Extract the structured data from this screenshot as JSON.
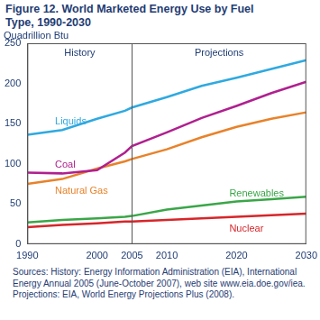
{
  "chart_data": {
    "type": "line",
    "title": "Figure 12. World Marketed Energy Use by Fuel Type, 1990-2030",
    "y_label": "Quadrillion Btu",
    "source": "Sources: History: Energy Information Administration (EIA), International Energy Annual 2005 (June-October 2007), web site www.eia.doe.gov/iea. Projections: EIA, World Energy Projections Plus (2008).",
    "annotations": [
      "History",
      "Projections"
    ],
    "divider": 2005,
    "x": [
      1990,
      1995,
      2000,
      2004,
      2005,
      2010,
      2015,
      2020,
      2025,
      2030
    ],
    "series": [
      {
        "name": "Liquids",
        "color": "#2fa9e0",
        "values": [
          136,
          142,
          156,
          166,
          170,
          183,
          197,
          207,
          218,
          229
        ]
      },
      {
        "name": "Coal",
        "color": "#b0208f",
        "values": [
          89,
          88,
          92,
          114,
          122,
          139,
          157,
          172,
          188,
          202
        ]
      },
      {
        "name": "Natural Gas",
        "color": "#e8822a",
        "values": [
          75,
          81,
          94,
          103,
          106,
          118,
          133,
          146,
          156,
          164
        ]
      },
      {
        "name": "Renewables",
        "color": "#3aa648",
        "values": [
          27,
          30,
          32,
          34,
          35,
          43,
          48,
          53,
          56,
          59
        ]
      },
      {
        "name": "Nuclear",
        "color": "#d7262a",
        "values": [
          21,
          24,
          26,
          28,
          28,
          30,
          32,
          34,
          36,
          38
        ]
      }
    ],
    "xlim": [
      1990,
      2030
    ],
    "xticks": [
      1990,
      2000,
      2005,
      2010,
      2020,
      2030
    ],
    "ylim": [
      0,
      250
    ],
    "yticks": [
      0,
      50,
      100,
      150,
      200,
      250
    ],
    "grid": false
  }
}
